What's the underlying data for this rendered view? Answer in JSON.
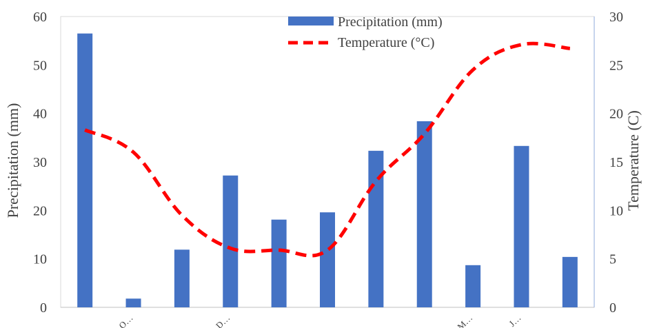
{
  "chart_data": {
    "type": "bar",
    "categories": [
      "",
      "O…",
      "",
      "D…",
      "",
      "",
      "",
      "",
      "M…",
      "J…",
      ""
    ],
    "series": [
      {
        "name": "Precipitation (mm)",
        "type": "bar",
        "axis": "left",
        "color": "#4472C4",
        "values": [
          56.5,
          1.8,
          11.9,
          27.2,
          18.1,
          19.6,
          32.3,
          38.4,
          8.7,
          33.3,
          10.4
        ]
      },
      {
        "name": "Temperature (°C)",
        "type": "line",
        "axis": "right",
        "color": "#FF0000",
        "dash": "dashed",
        "values": [
          18.3,
          16.0,
          9.5,
          6.1,
          5.9,
          5.9,
          13.0,
          17.9,
          24.5,
          27.1,
          26.7
        ]
      }
    ],
    "ylabel": "Precipitation (mm)",
    "y2label": "Temperature (C)",
    "ylim": [
      0,
      60
    ],
    "y2lim": [
      0,
      30
    ],
    "yticks": [
      0,
      10,
      20,
      30,
      40,
      50,
      60
    ],
    "y2ticks": [
      0,
      5,
      10,
      15,
      20,
      25,
      30
    ],
    "legend_position": "top-center",
    "grid": false
  }
}
